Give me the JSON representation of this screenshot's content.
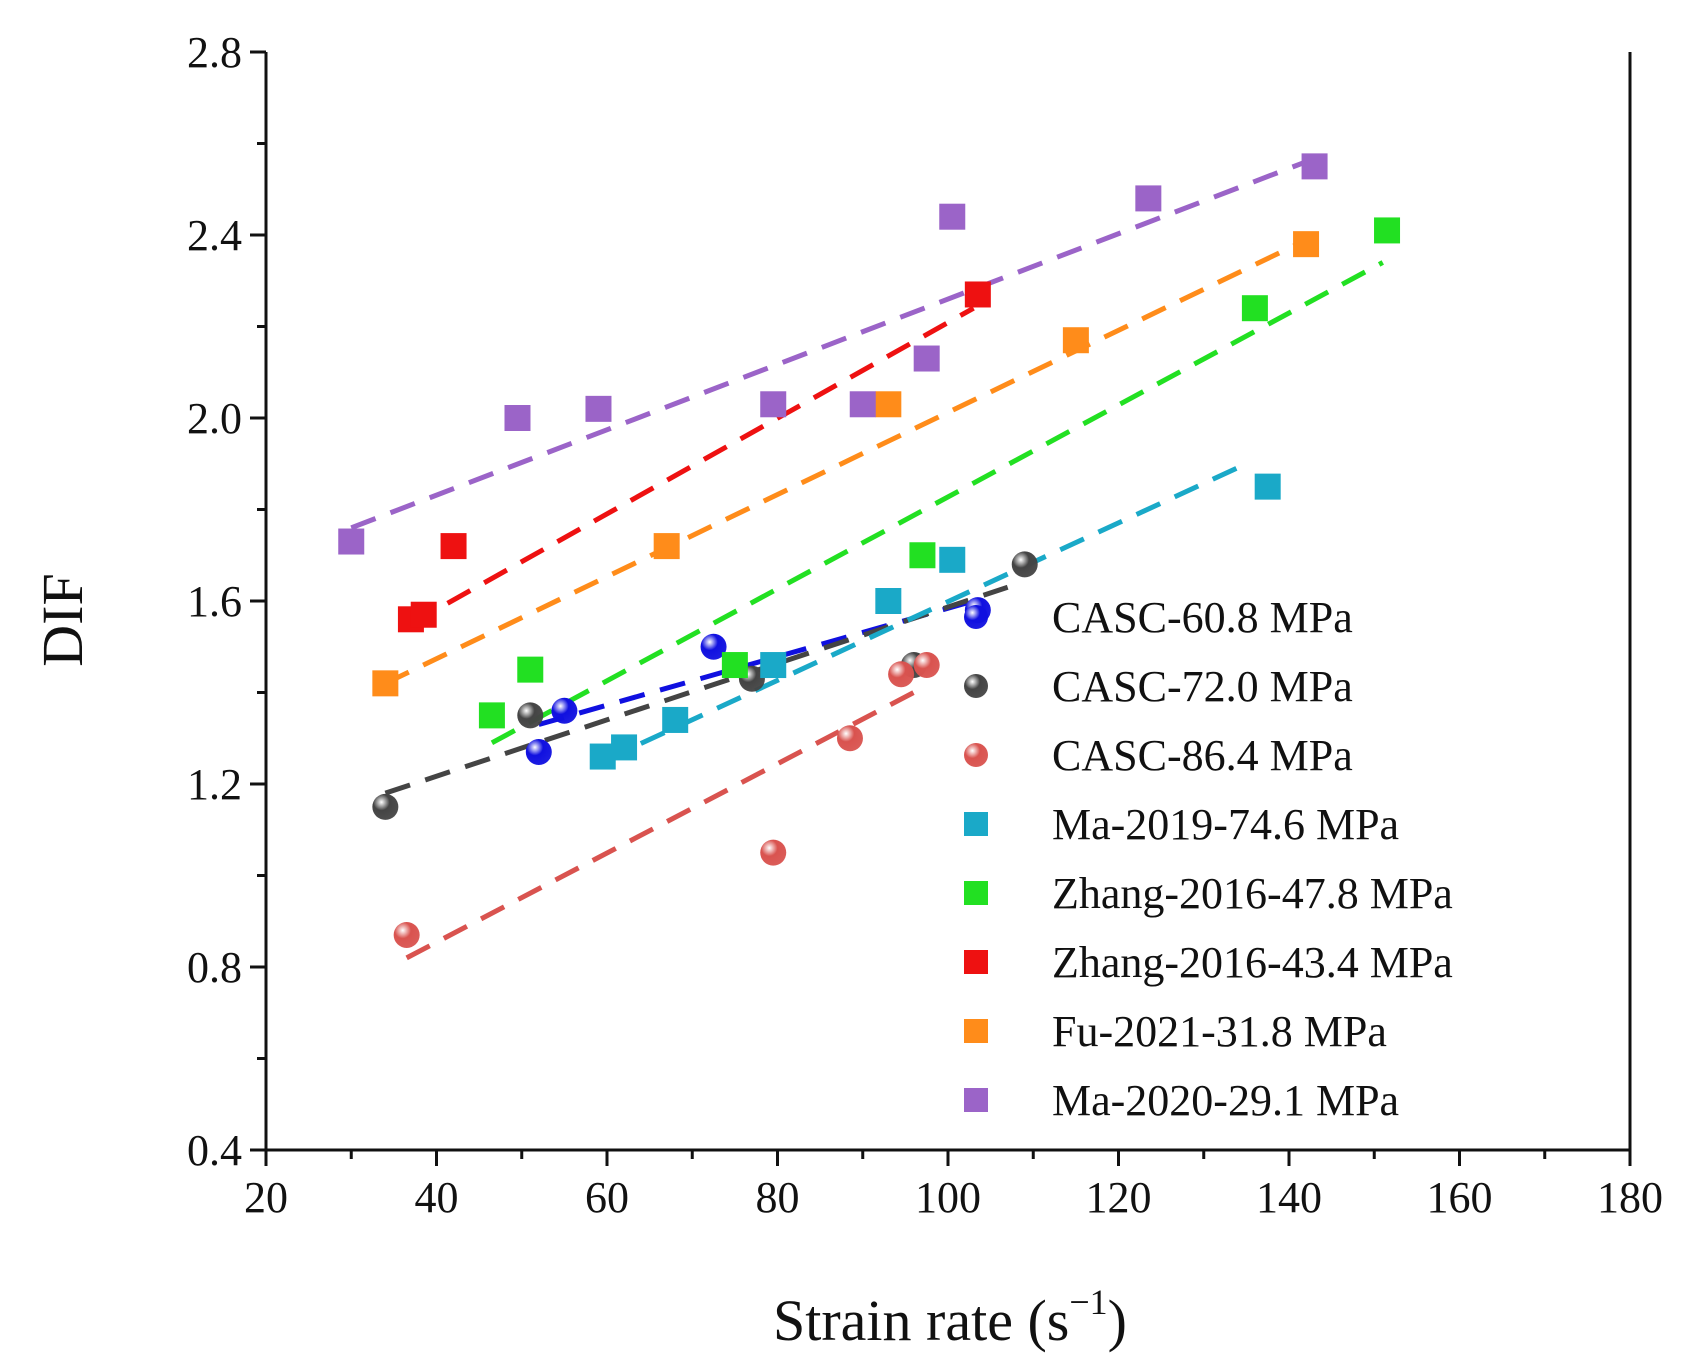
{
  "chart_data": {
    "type": "scatter",
    "title": "",
    "xlabel": "Strain rate (s",
    "xlabel_sup": "−1",
    "xlabel_close": ")",
    "ylabel": "DIF",
    "xlim": [
      20,
      180
    ],
    "ylim": [
      0.4,
      2.8
    ],
    "xticks": [
      20,
      40,
      60,
      80,
      100,
      120,
      140,
      160,
      180
    ],
    "xtick_labels": [
      "20",
      "40",
      "60",
      "80",
      "100",
      "120",
      "140",
      "160",
      "180"
    ],
    "yticks": [
      0.4,
      0.8,
      1.2,
      1.6,
      2.0,
      2.4,
      2.8
    ],
    "ytick_labels": [
      "0.4",
      "0.8",
      "1.2",
      "1.6",
      "2.0",
      "2.4",
      "2.8"
    ],
    "grid": false,
    "legend_position": "bottom-right",
    "series": [
      {
        "name": "CASC-60.8 MPa",
        "color": "#1010e0",
        "marker": "sphere",
        "points": [
          [
            52,
            1.27
          ],
          [
            55,
            1.36
          ],
          [
            72.5,
            1.5
          ],
          [
            103.5,
            1.58
          ]
        ],
        "fit": [
          [
            52,
            1.33
          ],
          [
            103,
            1.6
          ]
        ]
      },
      {
        "name": "CASC-72.0 MPa",
        "color": "#444444",
        "marker": "sphere",
        "points": [
          [
            34,
            1.15
          ],
          [
            51,
            1.35
          ],
          [
            77,
            1.43
          ],
          [
            96,
            1.46
          ],
          [
            109,
            1.68
          ]
        ],
        "fit": [
          [
            34,
            1.18
          ],
          [
            107,
            1.63
          ]
        ]
      },
      {
        "name": "CASC-86.4 MPa",
        "color": "#d9534f",
        "marker": "sphere",
        "points": [
          [
            36.5,
            0.87
          ],
          [
            79.5,
            1.05
          ],
          [
            88.5,
            1.3
          ],
          [
            94.5,
            1.44
          ],
          [
            97.5,
            1.46
          ]
        ],
        "fit": [
          [
            36.5,
            0.82
          ],
          [
            97,
            1.41
          ]
        ]
      },
      {
        "name": "Ma-2019-74.6 MPa",
        "color": "#1aa9c8",
        "marker": "square",
        "points": [
          [
            59.5,
            1.26
          ],
          [
            62,
            1.28
          ],
          [
            68,
            1.34
          ],
          [
            79.5,
            1.46
          ],
          [
            93,
            1.6
          ],
          [
            100.5,
            1.69
          ],
          [
            137.5,
            1.85
          ]
        ],
        "fit": [
          [
            59.5,
            1.25
          ],
          [
            135,
            1.9
          ]
        ]
      },
      {
        "name": "Zhang-2016-47.8 MPa",
        "color": "#22e022",
        "marker": "square",
        "points": [
          [
            46.5,
            1.35
          ],
          [
            51,
            1.45
          ],
          [
            75,
            1.46
          ],
          [
            97,
            1.7
          ],
          [
            136,
            2.24
          ],
          [
            151.5,
            2.41
          ]
        ],
        "fit": [
          [
            46.5,
            1.29
          ],
          [
            151,
            2.34
          ]
        ]
      },
      {
        "name": "Zhang-2016-43.4 MPa",
        "color": "#ee1111",
        "marker": "square",
        "points": [
          [
            37,
            1.56
          ],
          [
            38.5,
            1.57
          ],
          [
            42,
            1.72
          ],
          [
            103.5,
            2.27
          ]
        ],
        "fit": [
          [
            37,
            1.55
          ],
          [
            103,
            2.24
          ]
        ]
      },
      {
        "name": "Fu-2021-31.8 MPa",
        "color": "#ff8c1a",
        "marker": "square",
        "points": [
          [
            34,
            1.42
          ],
          [
            67,
            1.72
          ],
          [
            93,
            2.03
          ],
          [
            115,
            2.17
          ],
          [
            142,
            2.38
          ]
        ],
        "fit": [
          [
            34,
            1.42
          ],
          [
            141,
            2.38
          ]
        ]
      },
      {
        "name": "Ma-2020-29.1 MPa",
        "color": "#9b64c8",
        "marker": "square",
        "points": [
          [
            30,
            1.73
          ],
          [
            49.5,
            2.0
          ],
          [
            59,
            2.02
          ],
          [
            79.5,
            2.03
          ],
          [
            90,
            2.03
          ],
          [
            97.5,
            2.13
          ],
          [
            100.5,
            2.44
          ],
          [
            123.5,
            2.48
          ],
          [
            143,
            2.55
          ]
        ],
        "fit": [
          [
            30,
            1.76
          ],
          [
            142,
            2.56
          ]
        ]
      }
    ]
  }
}
